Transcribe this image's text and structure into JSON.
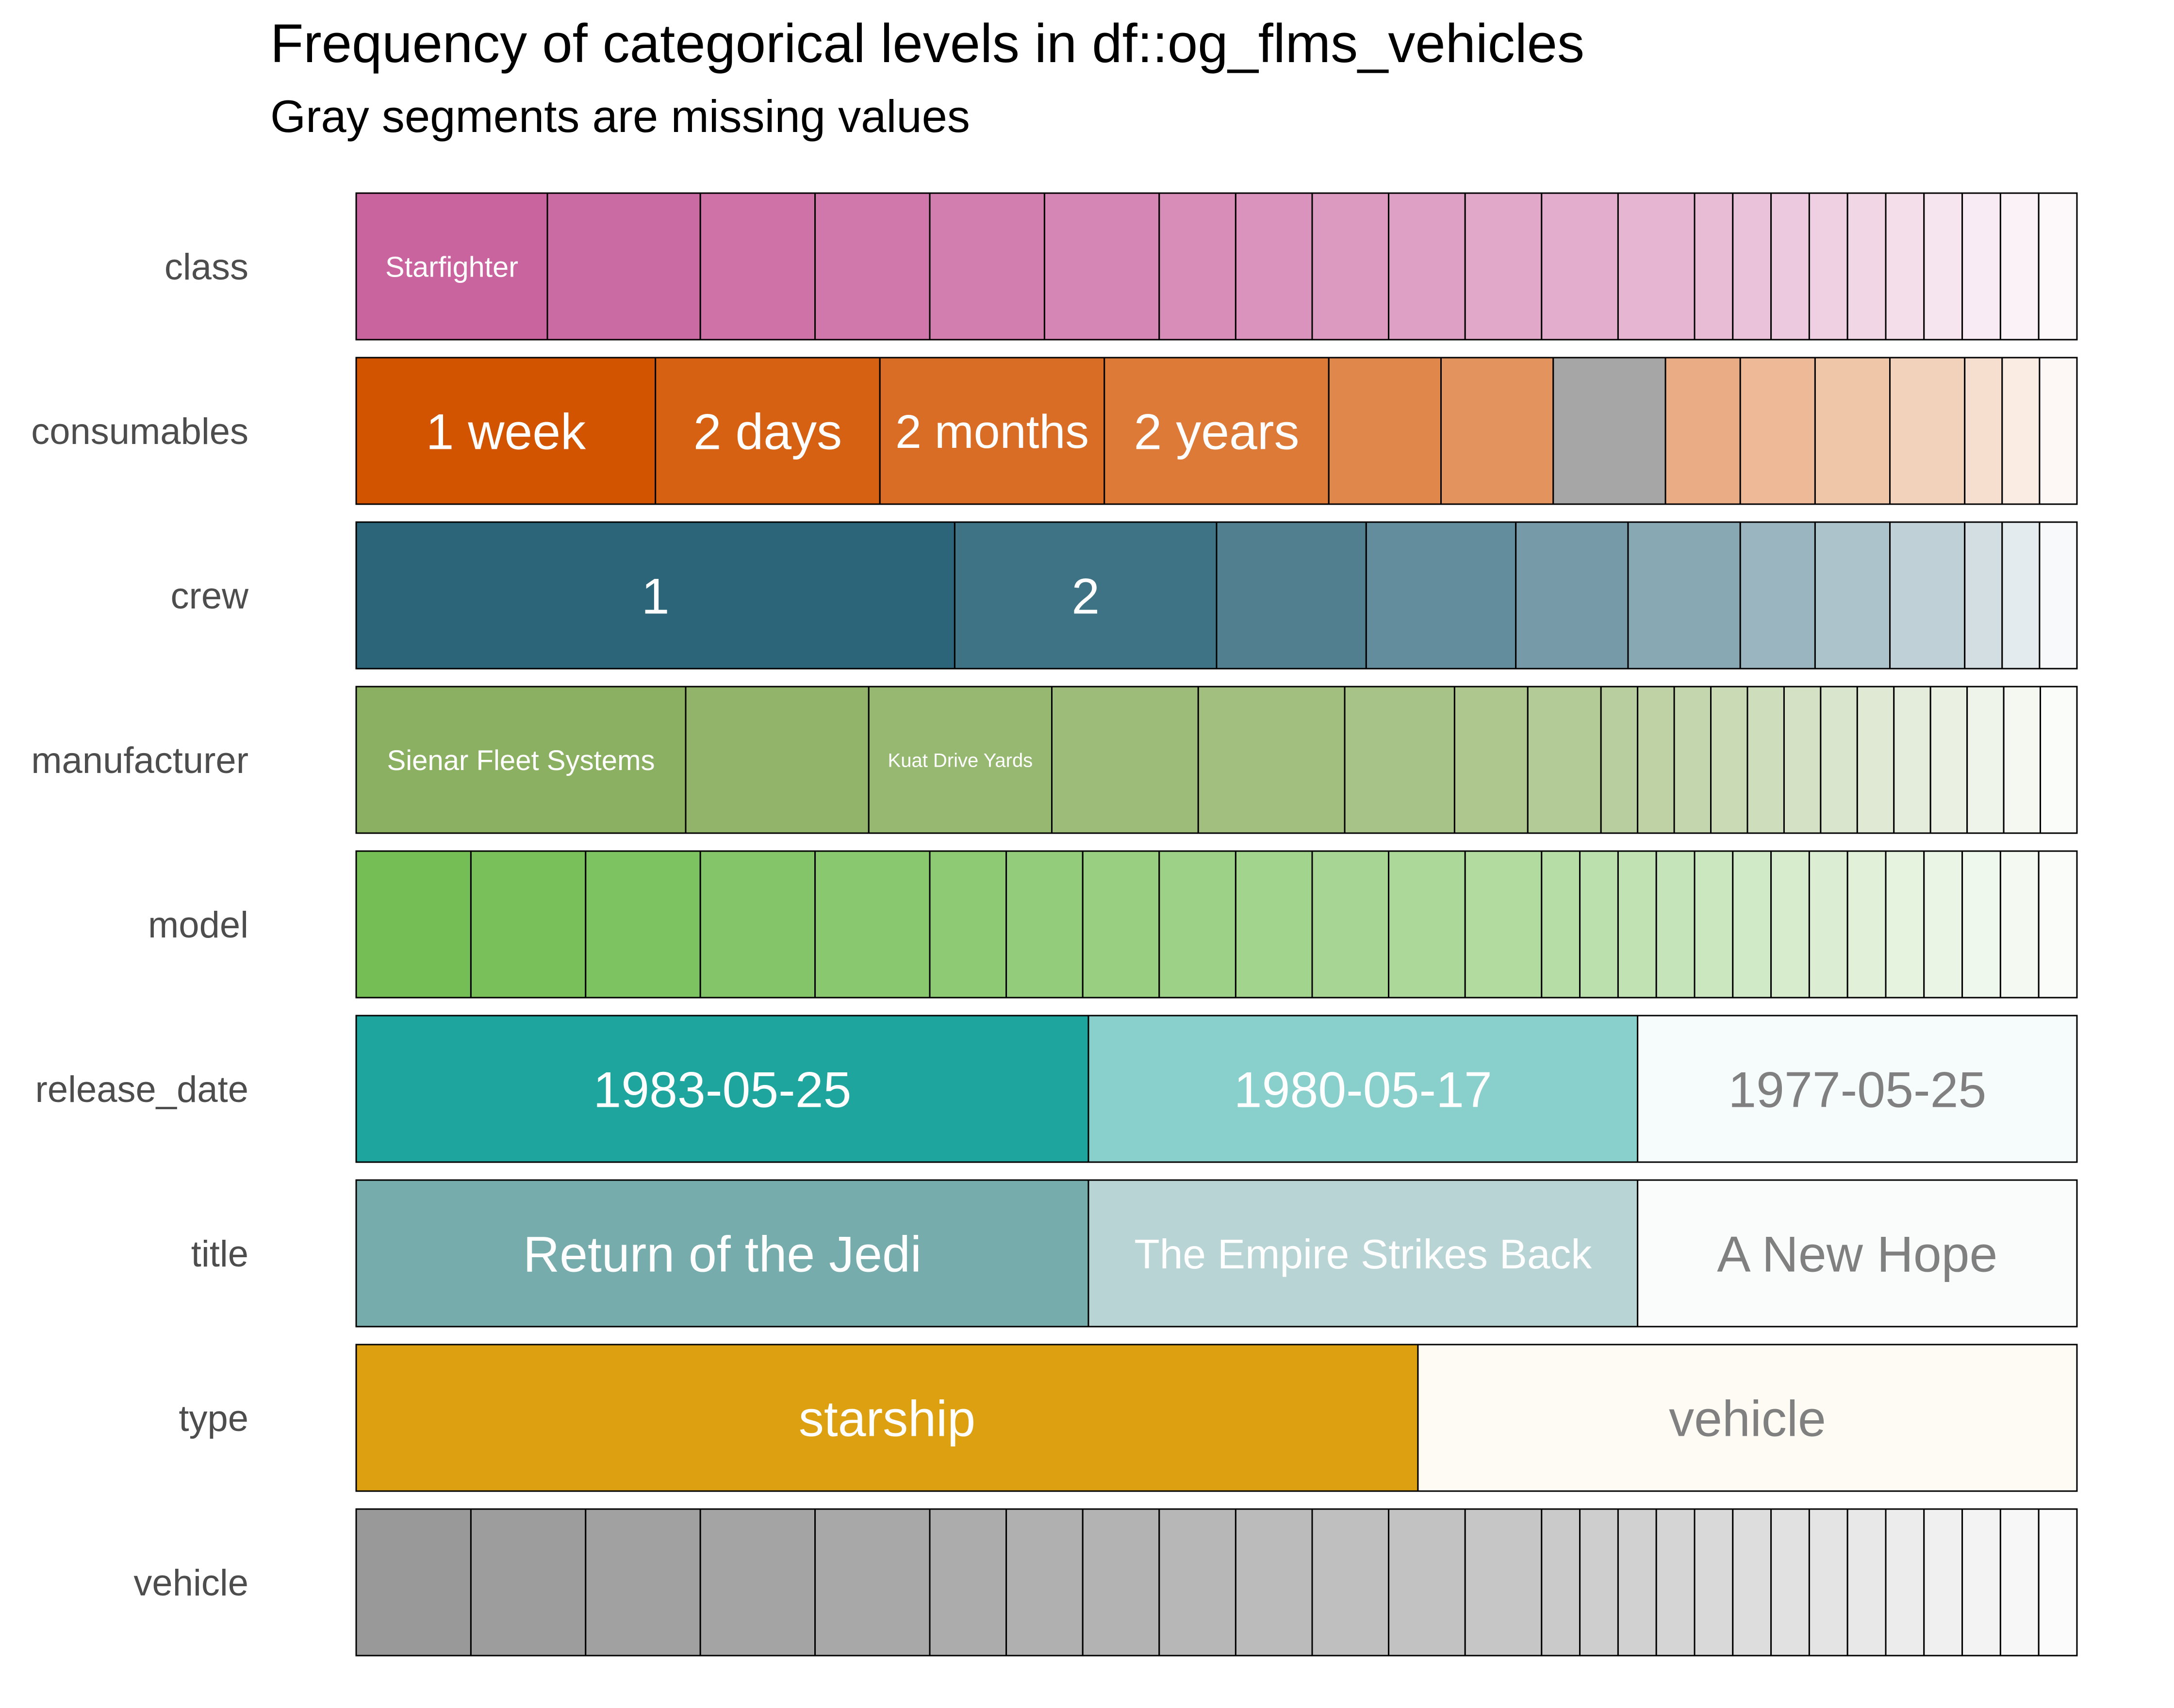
{
  "chart_data": {
    "type": "bar",
    "orientation": "horizontal-stacked-proportion",
    "title": "Frequency of categorical levels in df::og_flms_vehicles",
    "subtitle": "Gray segments are missing values",
    "rows": [
      {
        "name": "class",
        "color": "#c9649f",
        "light_text": "#ffffff",
        "counts": [
          5,
          4,
          3,
          3,
          3,
          3,
          2,
          2,
          2,
          2,
          2,
          2,
          2,
          1,
          1,
          1,
          1,
          1,
          1,
          1,
          1,
          1,
          1
        ],
        "labels": [
          "Starfighter"
        ],
        "missing_index": null
      },
      {
        "name": "consumables",
        "color": "#d35400",
        "light_text": "#ffffff",
        "counts": [
          8,
          6,
          6,
          6,
          3,
          3,
          3,
          2,
          2,
          2,
          2,
          1,
          1,
          1
        ],
        "labels": [
          "1 week",
          "2 days",
          "2 months",
          "2 years"
        ],
        "missing_index": 6
      },
      {
        "name": "crew",
        "color": "#2c6479",
        "light_text": "#ffffff",
        "counts": [
          16,
          7,
          4,
          4,
          3,
          3,
          2,
          2,
          2,
          1,
          1,
          1
        ],
        "labels": [
          "1",
          "2"
        ],
        "missing_index": null
      },
      {
        "name": "manufacturer",
        "color": "#8cb062",
        "light_text": "#ffffff",
        "counts": [
          9,
          5,
          5,
          4,
          4,
          3,
          2,
          2,
          1,
          1,
          1,
          1,
          1,
          1,
          1,
          1,
          1,
          1,
          1,
          1,
          1
        ],
        "labels": [
          "Sienar Fleet Systems",
          "",
          "Kuat Drive Yards"
        ],
        "missing_index": null
      },
      {
        "name": "model",
        "color": "#74be55",
        "light_text": "#ffffff",
        "counts": [
          3,
          3,
          3,
          3,
          3,
          2,
          2,
          2,
          2,
          2,
          2,
          2,
          2,
          1,
          1,
          1,
          1,
          1,
          1,
          1,
          1,
          1,
          1,
          1,
          1,
          1,
          1
        ],
        "labels": [],
        "missing_index": null
      },
      {
        "name": "release_date",
        "color": "#1da59e",
        "light_text": "#ffffff",
        "counts": [
          20,
          15,
          12
        ],
        "labels": [
          "1983-05-25",
          "1980-05-17",
          "1977-05-25"
        ],
        "missing_index": null
      },
      {
        "name": "title",
        "color": "#77acac",
        "light_text": "#ffffff",
        "counts": [
          20,
          15,
          12
        ],
        "labels": [
          "Return of the Jedi",
          "The Empire Strikes Back",
          "A New Hope"
        ],
        "missing_index": null
      },
      {
        "name": "type",
        "color": "#dca011",
        "light_text": "#ffffff",
        "counts": [
          29,
          18
        ],
        "labels": [
          "starship",
          "vehicle"
        ],
        "missing_index": null
      },
      {
        "name": "vehicle",
        "color": "#999999",
        "light_text": "#ffffff",
        "counts": [
          3,
          3,
          3,
          3,
          3,
          2,
          2,
          2,
          2,
          2,
          2,
          2,
          2,
          1,
          1,
          1,
          1,
          1,
          1,
          1,
          1,
          1,
          1,
          1,
          1,
          1,
          1
        ],
        "labels": [],
        "missing_index": null
      }
    ],
    "missing_color": "#a6a6a6",
    "dark_text": "#808080",
    "grid": false,
    "legend": "none"
  }
}
